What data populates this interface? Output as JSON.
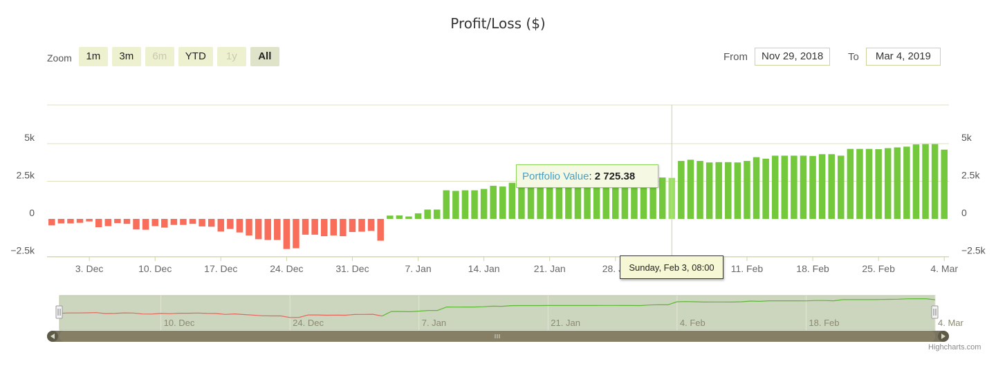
{
  "title": "Profit/Loss ($)",
  "zoom": {
    "label": "Zoom",
    "buttons": [
      {
        "label": "1m",
        "state": "normal"
      },
      {
        "label": "3m",
        "state": "normal"
      },
      {
        "label": "6m",
        "state": "disabled"
      },
      {
        "label": "YTD",
        "state": "normal"
      },
      {
        "label": "1y",
        "state": "disabled"
      },
      {
        "label": "All",
        "state": "active"
      }
    ]
  },
  "range": {
    "from_label": "From",
    "from_value": "Nov 29, 2018",
    "to_label": "To",
    "to_value": "Mar 4, 2019"
  },
  "tooltip": {
    "series_name": "Portfolio Value",
    "separator": ": ",
    "value": "2 725.38",
    "date": "Sunday, Feb 3, 08:00"
  },
  "credit": "Highcharts.com",
  "colors": {
    "positive": "#73c83b",
    "negative": "#f96e5b",
    "hover": "#9be064",
    "navigator_line_pos": "#5bb832",
    "navigator_line_neg": "#e8645a"
  },
  "chart_data": {
    "type": "bar",
    "title": "Profit/Loss ($)",
    "start_date": "2018-11-29",
    "y_ticks": [
      {
        "value": 5000,
        "label": "5k"
      },
      {
        "value": 2500,
        "label": "2.5k"
      },
      {
        "value": 0,
        "label": "0"
      },
      {
        "value": -2500,
        "label": "−2.5k"
      }
    ],
    "x_ticks": [
      {
        "date": "2018-12-03",
        "label": "3. Dec"
      },
      {
        "date": "2018-12-10",
        "label": "10. Dec"
      },
      {
        "date": "2018-12-17",
        "label": "17. Dec"
      },
      {
        "date": "2018-12-24",
        "label": "24. Dec"
      },
      {
        "date": "2018-12-31",
        "label": "31. Dec"
      },
      {
        "date": "2019-01-07",
        "label": "7. Jan"
      },
      {
        "date": "2019-01-14",
        "label": "14. Jan"
      },
      {
        "date": "2019-01-21",
        "label": "21. Jan"
      },
      {
        "date": "2019-01-28",
        "label": "28. Ja"
      },
      {
        "date": "2019-02-11",
        "label": "11. Feb"
      },
      {
        "date": "2019-02-18",
        "label": "18. Feb"
      },
      {
        "date": "2019-02-25",
        "label": "25. Feb"
      },
      {
        "date": "2019-03-04",
        "label": "4. Mar"
      }
    ],
    "navigator_ticks": [
      {
        "date": "2018-12-10",
        "label": "10. Dec"
      },
      {
        "date": "2018-12-24",
        "label": "24. Dec"
      },
      {
        "date": "2019-01-07",
        "label": "7. Jan"
      },
      {
        "date": "2019-01-21",
        "label": "21. Jan"
      },
      {
        "date": "2019-02-04",
        "label": "4. Feb"
      },
      {
        "date": "2019-02-18",
        "label": "18. Feb"
      },
      {
        "date": "2019-03-04",
        "label": "4. Mar"
      }
    ],
    "ylim": [
      -2500,
      6900
    ],
    "series": [
      {
        "name": "Portfolio Value",
        "points": [
          {
            "date": "2018-11-29",
            "value": -430
          },
          {
            "date": "2018-11-30",
            "value": -300
          },
          {
            "date": "2018-12-01",
            "value": -300
          },
          {
            "date": "2018-12-02",
            "value": -260
          },
          {
            "date": "2018-12-03",
            "value": -170
          },
          {
            "date": "2018-12-04",
            "value": -550
          },
          {
            "date": "2018-12-05",
            "value": -480
          },
          {
            "date": "2018-12-06",
            "value": -280
          },
          {
            "date": "2018-12-07",
            "value": -330
          },
          {
            "date": "2018-12-08",
            "value": -700
          },
          {
            "date": "2018-12-09",
            "value": -720
          },
          {
            "date": "2018-12-10",
            "value": -480
          },
          {
            "date": "2018-12-11",
            "value": -580
          },
          {
            "date": "2018-12-12",
            "value": -400
          },
          {
            "date": "2018-12-13",
            "value": -400
          },
          {
            "date": "2018-12-14",
            "value": -330
          },
          {
            "date": "2018-12-15",
            "value": -500
          },
          {
            "date": "2018-12-16",
            "value": -520
          },
          {
            "date": "2018-12-17",
            "value": -840
          },
          {
            "date": "2018-12-18",
            "value": -670
          },
          {
            "date": "2018-12-19",
            "value": -900
          },
          {
            "date": "2018-12-20",
            "value": -1100
          },
          {
            "date": "2018-12-21",
            "value": -1350
          },
          {
            "date": "2018-12-22",
            "value": -1400
          },
          {
            "date": "2018-12-23",
            "value": -1400
          },
          {
            "date": "2018-12-24",
            "value": -2000
          },
          {
            "date": "2018-12-25",
            "value": -1950
          },
          {
            "date": "2018-12-26",
            "value": -1050
          },
          {
            "date": "2018-12-27",
            "value": -1050
          },
          {
            "date": "2018-12-28",
            "value": -1150
          },
          {
            "date": "2018-12-29",
            "value": -1100
          },
          {
            "date": "2018-12-30",
            "value": -1150
          },
          {
            "date": "2018-12-31",
            "value": -870
          },
          {
            "date": "2019-01-01",
            "value": -850
          },
          {
            "date": "2019-01-02",
            "value": -800
          },
          {
            "date": "2019-01-03",
            "value": -1450
          },
          {
            "date": "2019-01-04",
            "value": 220
          },
          {
            "date": "2019-01-05",
            "value": 230
          },
          {
            "date": "2019-01-06",
            "value": 160
          },
          {
            "date": "2019-01-07",
            "value": 370
          },
          {
            "date": "2019-01-08",
            "value": 620
          },
          {
            "date": "2019-01-09",
            "value": 620
          },
          {
            "date": "2019-01-10",
            "value": 1900
          },
          {
            "date": "2019-01-11",
            "value": 1860
          },
          {
            "date": "2019-01-12",
            "value": 1900
          },
          {
            "date": "2019-01-13",
            "value": 1900
          },
          {
            "date": "2019-01-14",
            "value": 1990
          },
          {
            "date": "2019-01-15",
            "value": 2200
          },
          {
            "date": "2019-01-16",
            "value": 2150
          },
          {
            "date": "2019-01-17",
            "value": 2400
          },
          {
            "date": "2019-01-18",
            "value": 2430
          },
          {
            "date": "2019-01-19",
            "value": 2440
          },
          {
            "date": "2019-01-20",
            "value": 2440
          },
          {
            "date": "2019-01-21",
            "value": 2460
          },
          {
            "date": "2019-01-22",
            "value": 2470
          },
          {
            "date": "2019-01-23",
            "value": 2450
          },
          {
            "date": "2019-01-24",
            "value": 2450
          },
          {
            "date": "2019-01-25",
            "value": 2460
          },
          {
            "date": "2019-01-26",
            "value": 2470
          },
          {
            "date": "2019-01-27",
            "value": 2480
          },
          {
            "date": "2019-01-28",
            "value": 2480
          },
          {
            "date": "2019-01-29",
            "value": 2470
          },
          {
            "date": "2019-01-30",
            "value": 2460
          },
          {
            "date": "2019-01-31",
            "value": 2440
          },
          {
            "date": "2019-02-01",
            "value": 2650
          },
          {
            "date": "2019-02-02",
            "value": 2750
          },
          {
            "date": "2019-02-03",
            "value": 2725.38
          },
          {
            "date": "2019-02-04",
            "value": 3850
          },
          {
            "date": "2019-02-05",
            "value": 3930
          },
          {
            "date": "2019-02-06",
            "value": 3850
          },
          {
            "date": "2019-02-07",
            "value": 3750
          },
          {
            "date": "2019-02-08",
            "value": 3770
          },
          {
            "date": "2019-02-09",
            "value": 3770
          },
          {
            "date": "2019-02-10",
            "value": 3750
          },
          {
            "date": "2019-02-11",
            "value": 3850
          },
          {
            "date": "2019-02-12",
            "value": 4100
          },
          {
            "date": "2019-02-13",
            "value": 4000
          },
          {
            "date": "2019-02-14",
            "value": 4200
          },
          {
            "date": "2019-02-15",
            "value": 4200
          },
          {
            "date": "2019-02-16",
            "value": 4200
          },
          {
            "date": "2019-02-17",
            "value": 4200
          },
          {
            "date": "2019-02-18",
            "value": 4180
          },
          {
            "date": "2019-02-19",
            "value": 4300
          },
          {
            "date": "2019-02-20",
            "value": 4300
          },
          {
            "date": "2019-02-21",
            "value": 4200
          },
          {
            "date": "2019-02-22",
            "value": 4650
          },
          {
            "date": "2019-02-23",
            "value": 4650
          },
          {
            "date": "2019-02-24",
            "value": 4650
          },
          {
            "date": "2019-02-25",
            "value": 4630
          },
          {
            "date": "2019-02-26",
            "value": 4700
          },
          {
            "date": "2019-02-27",
            "value": 4750
          },
          {
            "date": "2019-02-28",
            "value": 4800
          },
          {
            "date": "2019-03-01",
            "value": 4950
          },
          {
            "date": "2019-03-02",
            "value": 4970
          },
          {
            "date": "2019-03-03",
            "value": 4970
          },
          {
            "date": "2019-03-04",
            "value": 4600
          }
        ]
      }
    ]
  }
}
